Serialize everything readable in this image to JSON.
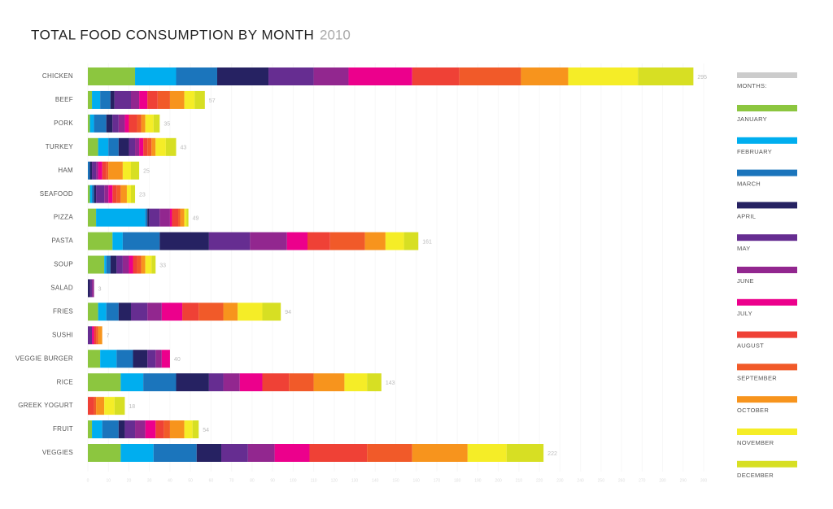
{
  "chart_data": {
    "type": "stacked-barh",
    "title": "TOTAL FOOD CONSUMPTION BY MONTH",
    "subtitle": "2010",
    "legend_title": "MONTHS:",
    "categories": [
      "CHICKEN",
      "BEEF",
      "PORK",
      "TURKEY",
      "HAM",
      "SEAFOOD",
      "PIZZA",
      "PASTA",
      "SOUP",
      "SALAD",
      "FRIES",
      "SUSHI",
      "VEGGIE BURGER",
      "RICE",
      "GREEK YOGURT",
      "FRUIT",
      "VEGGIES"
    ],
    "totals": [
      295,
      57,
      35,
      43,
      25,
      23,
      49,
      161,
      33,
      3,
      94,
      7,
      40,
      143,
      18,
      54,
      222
    ],
    "series": [
      {
        "name": "JANUARY",
        "color": "#8cc63f",
        "values": [
          23,
          2,
          1,
          5,
          0,
          1,
          4,
          12,
          8,
          0,
          5,
          0,
          6,
          16,
          0,
          2,
          16
        ]
      },
      {
        "name": "FEBRUARY",
        "color": "#00aeef",
        "values": [
          20,
          4,
          2,
          5,
          0,
          1,
          24,
          5,
          1,
          0,
          4,
          0,
          8,
          11,
          0,
          5,
          16
        ]
      },
      {
        "name": "MARCH",
        "color": "#1b75bc",
        "values": [
          20,
          5,
          6,
          5,
          1,
          1,
          1,
          18,
          2,
          0,
          6,
          0,
          8,
          16,
          0,
          8,
          21
        ]
      },
      {
        "name": "APRIL",
        "color": "#262262",
        "values": [
          25,
          2,
          3,
          5,
          1,
          1,
          1,
          24,
          3,
          1,
          6,
          0,
          7,
          16,
          0,
          3,
          12
        ]
      },
      {
        "name": "MAY",
        "color": "#662d91",
        "values": [
          22,
          8,
          3,
          3,
          2,
          4,
          5,
          20,
          3,
          1,
          8,
          2,
          4,
          7,
          0,
          5,
          13
        ]
      },
      {
        "name": "JUNE",
        "color": "#92278f",
        "values": [
          17,
          4,
          3,
          2,
          1,
          2,
          5,
          18,
          3,
          1,
          7,
          0,
          3,
          8,
          0,
          5,
          13
        ]
      },
      {
        "name": "JULY",
        "color": "#ec008c",
        "values": [
          31,
          4,
          2,
          2,
          2,
          2,
          1,
          10,
          2,
          0,
          10,
          1,
          4,
          11,
          0,
          5,
          17
        ]
      },
      {
        "name": "AUGUST",
        "color": "#ef4136",
        "values": [
          23,
          5,
          4,
          2,
          2,
          2,
          3,
          11,
          2,
          0,
          8,
          1,
          0,
          13,
          3,
          4,
          28
        ]
      },
      {
        "name": "SEPTEMBER",
        "color": "#f15a29",
        "values": [
          30,
          6,
          2,
          2,
          1,
          2,
          1,
          17,
          2,
          0,
          12,
          1,
          0,
          12,
          1,
          3,
          22
        ]
      },
      {
        "name": "OCTOBER",
        "color": "#f7941d",
        "values": [
          23,
          7,
          2,
          2,
          7,
          3,
          2,
          10,
          2,
          0,
          7,
          2,
          0,
          15,
          4,
          7,
          27
        ]
      },
      {
        "name": "NOVEMBER",
        "color": "#f5ed27",
        "values": [
          34,
          5,
          4,
          5,
          4,
          2,
          1,
          9,
          3,
          0,
          12,
          0,
          0,
          11,
          5,
          4,
          19
        ]
      },
      {
        "name": "DECEMBER",
        "color": "#d7df23",
        "values": [
          27,
          5,
          3,
          5,
          4,
          2,
          1,
          7,
          2,
          0,
          9,
          0,
          0,
          7,
          5,
          3,
          18
        ]
      }
    ],
    "xlim": [
      0,
      300
    ],
    "xticks": [
      0,
      10,
      20,
      30,
      40,
      50,
      60,
      70,
      80,
      90,
      100,
      110,
      120,
      130,
      140,
      150,
      160,
      170,
      180,
      190,
      200,
      210,
      220,
      230,
      240,
      250,
      260,
      270,
      280,
      290,
      300
    ],
    "grid": true
  }
}
